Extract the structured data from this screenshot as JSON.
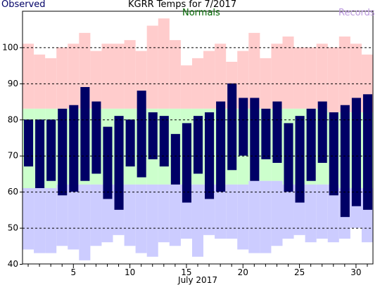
{
  "chart_data": {
    "type": "bar",
    "title": "KGRR Temps for 7/2017",
    "legend": [
      {
        "name": "Observed",
        "color": "#000066"
      },
      {
        "name": "Normals",
        "color": "#006600"
      },
      {
        "name": "Records",
        "color": "#bb99dd"
      }
    ],
    "xlabel": "July 2017",
    "ylabel": "",
    "ylim": [
      40,
      110
    ],
    "yticks": [
      40,
      50,
      60,
      70,
      80,
      90,
      100
    ],
    "xticks": [
      5,
      10,
      15,
      20,
      25,
      30
    ],
    "gridlines": [
      50,
      60,
      70,
      80,
      90,
      100
    ],
    "days": [
      1,
      2,
      3,
      4,
      5,
      6,
      7,
      8,
      9,
      10,
      11,
      12,
      13,
      14,
      15,
      16,
      17,
      18,
      19,
      20,
      21,
      22,
      23,
      24,
      25,
      26,
      27,
      28,
      29,
      30,
      31
    ],
    "observed_high": [
      80,
      80,
      80,
      83,
      84,
      89,
      85,
      78,
      81,
      80,
      88,
      82,
      81,
      76,
      79,
      81,
      82,
      85,
      90,
      86,
      86,
      83,
      85,
      79,
      81,
      83,
      85,
      82,
      84,
      86,
      87
    ],
    "observed_low": [
      67,
      61,
      63,
      59,
      60,
      63,
      65,
      58,
      55,
      67,
      64,
      69,
      67,
      62,
      57,
      65,
      58,
      60,
      66,
      70,
      63,
      69,
      68,
      60,
      57,
      63,
      68,
      59,
      53,
      56,
      55
    ],
    "normal_high": [
      83,
      83,
      83,
      83,
      83,
      83,
      83,
      83,
      83,
      83,
      83,
      83,
      83,
      83,
      83,
      83,
      83,
      83,
      83,
      83,
      83,
      83,
      83,
      83,
      83,
      83,
      83,
      82,
      82,
      82,
      82
    ],
    "normal_low": [
      61,
      61,
      61,
      62,
      62,
      62,
      62,
      62,
      62,
      62,
      62,
      62,
      62,
      62,
      62,
      62,
      62,
      62,
      62,
      62,
      63,
      63,
      63,
      62,
      62,
      62,
      62,
      62,
      61,
      61,
      61
    ],
    "record_high": [
      101,
      98,
      97,
      100,
      101,
      104,
      99,
      101,
      101,
      102,
      99,
      106,
      108,
      102,
      95,
      97,
      99,
      101,
      96,
      99,
      104,
      97,
      101,
      103,
      100,
      100,
      101,
      100,
      103,
      101,
      98
    ],
    "record_low": [
      44,
      43,
      43,
      45,
      44,
      41,
      45,
      46,
      48,
      45,
      43,
      42,
      46,
      45,
      47,
      42,
      48,
      47,
      47,
      44,
      43,
      43,
      45,
      47,
      48,
      46,
      47,
      46,
      47,
      50,
      46
    ],
    "colors": {
      "observed": "#000066",
      "normal": "#ccffcc",
      "record_high": "#ffcccc",
      "record_low": "#ccccff",
      "grid": "#000000"
    }
  }
}
